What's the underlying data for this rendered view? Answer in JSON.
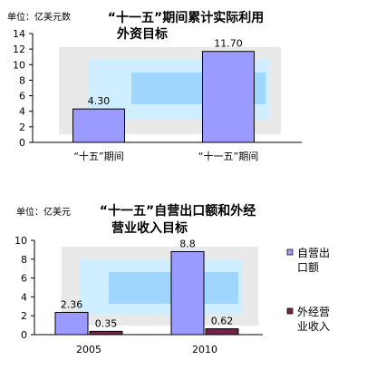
{
  "colors": {
    "bar_primary": "#9b9bff",
    "bar_secondary": "#7a1f4a",
    "bar_edge": "#000000",
    "axis": "#000000",
    "bg_frame": "#e9e9e9",
    "bg_panel": "#cfeeff",
    "bg_inner": "#9fd6ff"
  },
  "chart_data": [
    {
      "type": "bar",
      "unit_label": "单位：亿美元数",
      "title_line1": "“十一五”期间累计实际利用",
      "title_line2": "外资目标",
      "categories": [
        "“十五”期间",
        "“十一五”期间"
      ],
      "series": [
        {
          "values": [
            4.3,
            11.7
          ],
          "labels": [
            "4.30",
            "11.70"
          ]
        }
      ],
      "ylim": [
        0,
        14
      ],
      "yticks": [
        "0",
        "2",
        "4",
        "6",
        "8",
        "10",
        "12",
        "14"
      ],
      "grid": false
    },
    {
      "type": "bar",
      "unit_label": "单位：亿美元",
      "title_line1": "“十一五”自营出口额和外经",
      "title_line2": "营业收入目标",
      "categories": [
        "2005",
        "2010"
      ],
      "series": [
        {
          "name": "自营出口额",
          "values": [
            2.36,
            8.8
          ],
          "labels": [
            "2.36",
            "8.8"
          ]
        },
        {
          "name": "外经营业收入",
          "values": [
            0.35,
            0.62
          ],
          "labels": [
            "0.35",
            "0.62"
          ]
        }
      ],
      "legend": [
        {
          "line1": "自营出",
          "line2": "口额"
        },
        {
          "line1": "外经营",
          "line2": "业收入"
        }
      ],
      "ylim": [
        0,
        10
      ],
      "yticks": [
        "0",
        "2",
        "4",
        "6",
        "8",
        "10"
      ],
      "grid": false,
      "legend_position": "right"
    }
  ]
}
